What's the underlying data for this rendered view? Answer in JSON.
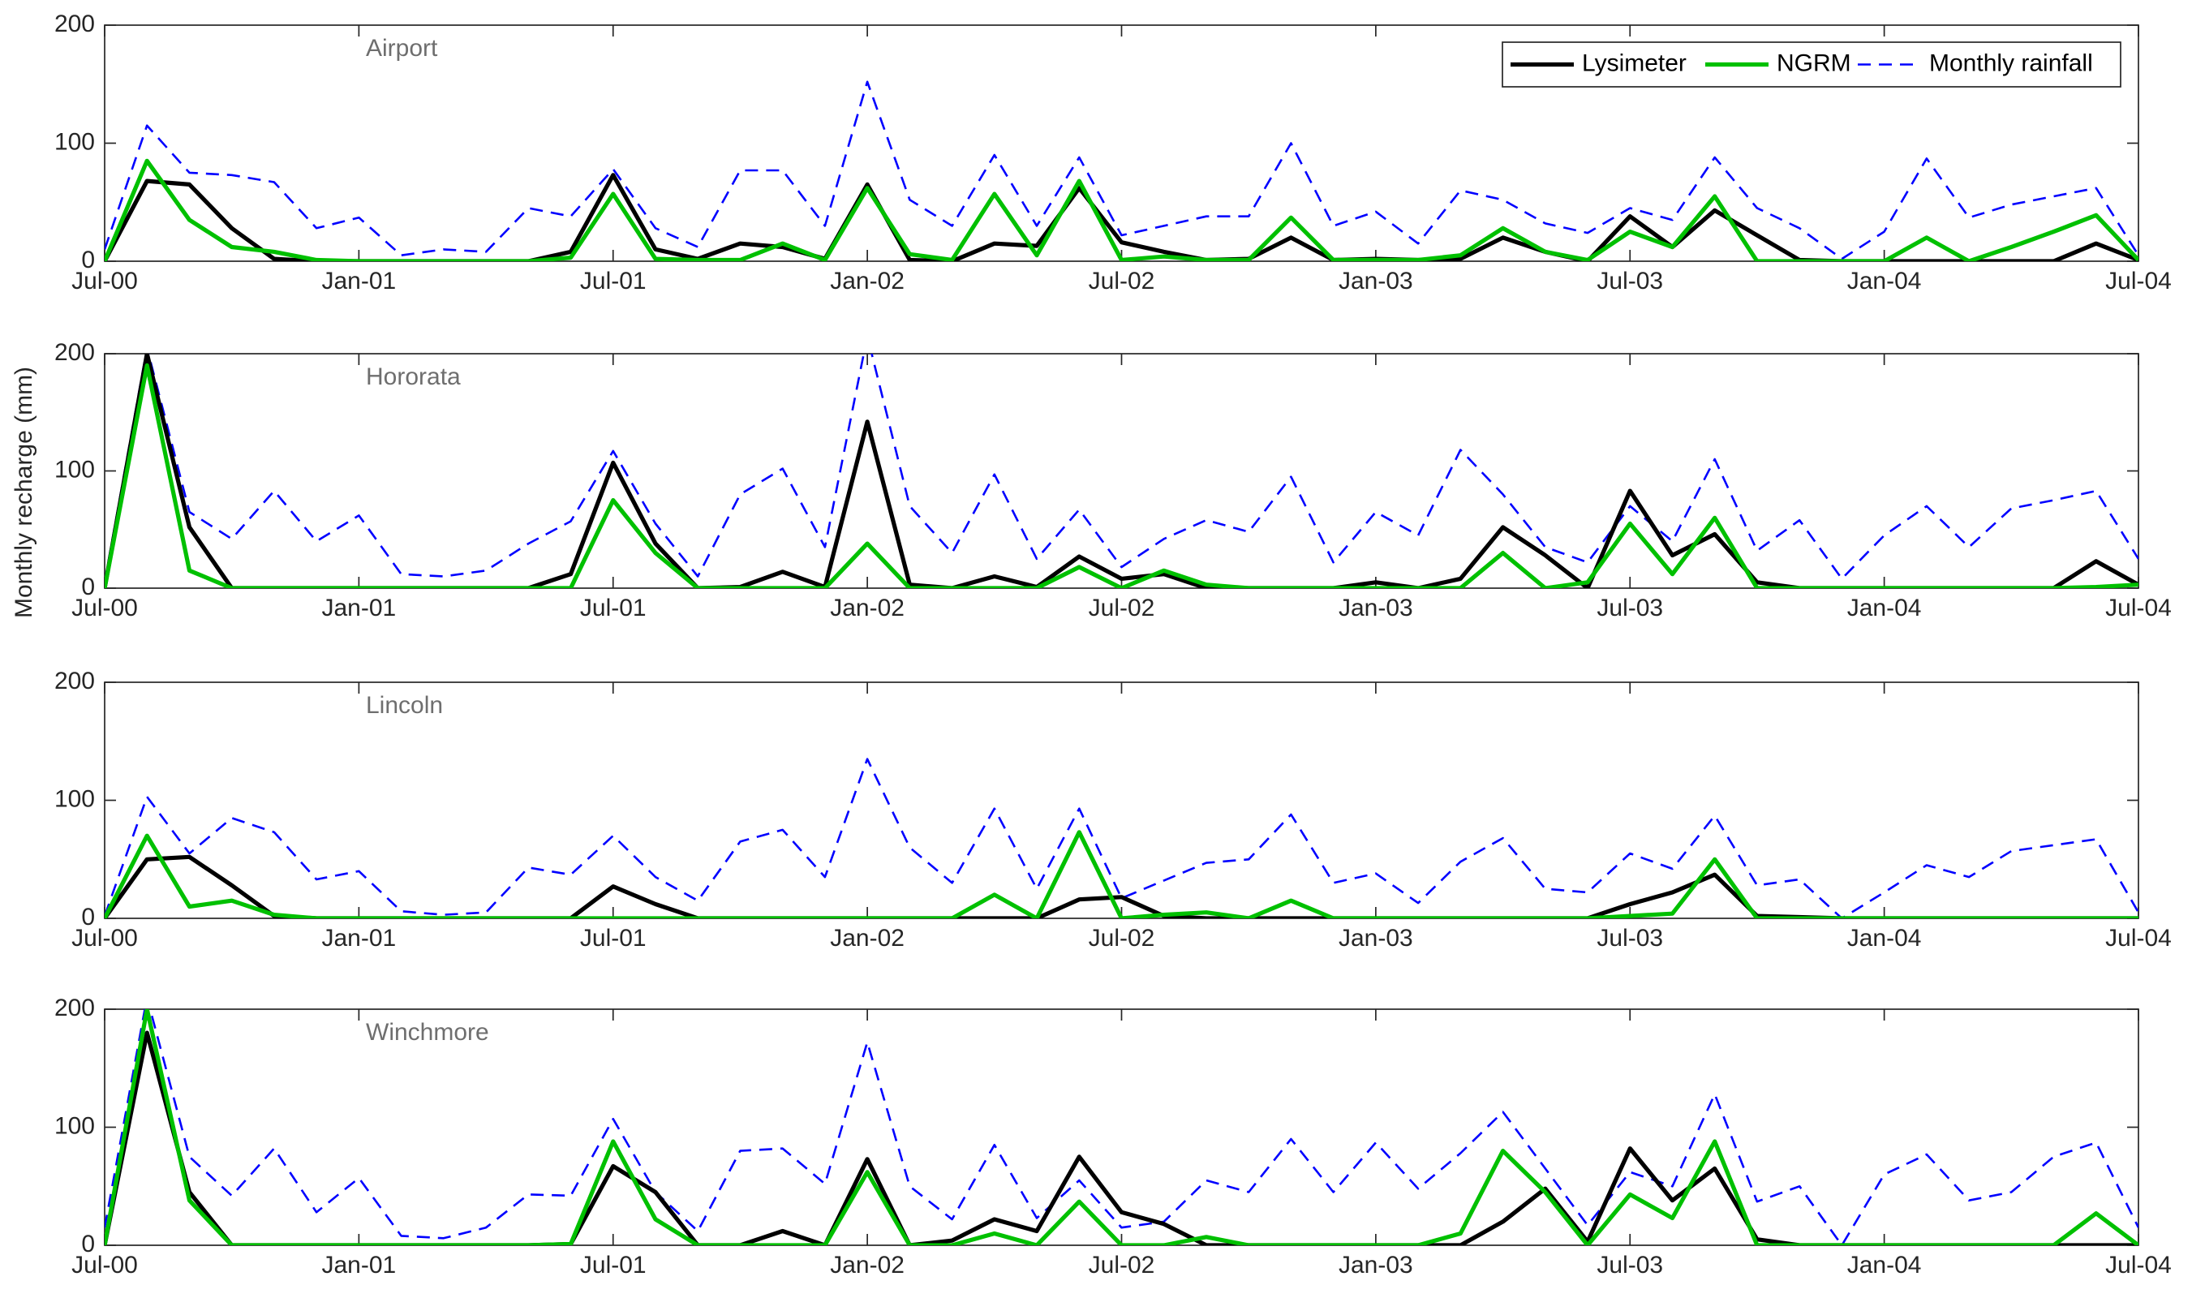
{
  "chart_data": [
    {
      "type": "line",
      "title": "Airport",
      "legend": "upper right",
      "categories": [
        "Jul-00",
        null,
        null,
        null,
        null,
        null,
        "Jan-01",
        null,
        null,
        null,
        null,
        null,
        "Jul-01",
        null,
        null,
        null,
        null,
        null,
        "Jan-02",
        null,
        null,
        null,
        null,
        null,
        "Jul-02",
        null,
        null,
        null,
        null,
        null,
        "Jan-03",
        null,
        null,
        null,
        null,
        null,
        "Jul-03",
        null,
        null,
        null,
        null,
        null,
        "Jan-04",
        null,
        null,
        null,
        null,
        null,
        "Jul-04"
      ],
      "ylim": [
        0,
        200
      ],
      "yticks": [
        0,
        100,
        200
      ],
      "series": [
        {
          "name": "Lysimeter",
          "color": "#000000",
          "linestyle": "solid",
          "values": [
            0,
            68,
            65,
            28,
            2,
            0,
            0,
            0,
            0,
            0,
            0,
            8,
            73,
            10,
            2,
            15,
            12,
            2,
            65,
            1,
            0,
            15,
            13,
            62,
            16,
            8,
            1,
            2,
            20,
            1,
            2,
            1,
            2,
            20,
            8,
            0,
            38,
            12,
            43,
            22,
            1,
            0,
            0,
            0,
            0,
            0,
            0,
            15,
            1
          ]
        },
        {
          "name": "NGRM",
          "color": "#00c000",
          "linestyle": "solid",
          "values": [
            0,
            85,
            35,
            12,
            8,
            1,
            0,
            0,
            0,
            0,
            0,
            3,
            57,
            2,
            1,
            1,
            15,
            1,
            62,
            6,
            1,
            57,
            5,
            68,
            1,
            4,
            1,
            1,
            37,
            1,
            1,
            1,
            5,
            28,
            8,
            1,
            25,
            12,
            55,
            0,
            0,
            0,
            0,
            20,
            0,
            12,
            25,
            39,
            1
          ]
        },
        {
          "name": "Monthly rainfall",
          "color": "#0000ff",
          "linestyle": "dashed",
          "values": [
            10,
            115,
            75,
            73,
            67,
            28,
            37,
            5,
            10,
            8,
            45,
            38,
            78,
            28,
            12,
            77,
            77,
            30,
            152,
            52,
            30,
            90,
            30,
            88,
            22,
            30,
            38,
            38,
            100,
            30,
            42,
            15,
            60,
            52,
            32,
            24,
            45,
            35,
            88,
            45,
            28,
            2,
            25,
            87,
            37,
            48,
            55,
            62,
            5
          ]
        }
      ]
    },
    {
      "type": "line",
      "title": "Hororata",
      "ylabel": "Monthly recharge (mm)",
      "categories": [
        "Jul-00",
        null,
        null,
        null,
        null,
        null,
        "Jan-01",
        null,
        null,
        null,
        null,
        null,
        "Jul-01",
        null,
        null,
        null,
        null,
        null,
        "Jan-02",
        null,
        null,
        null,
        null,
        null,
        "Jul-02",
        null,
        null,
        null,
        null,
        null,
        "Jan-03",
        null,
        null,
        null,
        null,
        null,
        "Jul-03",
        null,
        null,
        null,
        null,
        null,
        "Jan-04",
        null,
        null,
        null,
        null,
        null,
        "Jul-04"
      ],
      "ylim": [
        0,
        200
      ],
      "yticks": [
        0,
        100,
        200
      ],
      "series": [
        {
          "name": "Lysimeter",
          "color": "#000000",
          "linestyle": "solid",
          "values": [
            0,
            200,
            52,
            0,
            0,
            0,
            0,
            0,
            0,
            0,
            0,
            12,
            107,
            38,
            0,
            1,
            14,
            1,
            142,
            3,
            0,
            10,
            1,
            27,
            8,
            12,
            0,
            0,
            0,
            0,
            5,
            0,
            8,
            52,
            28,
            0,
            83,
            28,
            46,
            5,
            0,
            0,
            0,
            0,
            0,
            0,
            0,
            23,
            3
          ]
        },
        {
          "name": "NGRM",
          "color": "#00c000",
          "linestyle": "solid",
          "values": [
            0,
            190,
            15,
            0,
            0,
            0,
            0,
            0,
            0,
            0,
            0,
            0,
            75,
            30,
            0,
            0,
            0,
            0,
            38,
            0,
            0,
            0,
            0,
            18,
            0,
            15,
            3,
            0,
            0,
            0,
            0,
            0,
            0,
            30,
            0,
            5,
            55,
            12,
            60,
            0,
            0,
            0,
            0,
            0,
            0,
            0,
            0,
            1,
            3
          ]
        },
        {
          "name": "Monthly rainfall",
          "color": "#0000ff",
          "linestyle": "dashed",
          "values": [
            5,
            205,
            65,
            42,
            83,
            40,
            62,
            12,
            10,
            15,
            38,
            57,
            117,
            55,
            10,
            80,
            102,
            35,
            215,
            70,
            30,
            97,
            25,
            67,
            18,
            42,
            58,
            48,
            95,
            22,
            65,
            45,
            118,
            80,
            35,
            22,
            70,
            40,
            110,
            32,
            58,
            8,
            45,
            70,
            35,
            68,
            75,
            83,
            25
          ]
        }
      ]
    },
    {
      "type": "line",
      "title": "Lincoln",
      "categories": [
        "Jul-00",
        null,
        null,
        null,
        null,
        null,
        "Jan-01",
        null,
        null,
        null,
        null,
        null,
        "Jul-01",
        null,
        null,
        null,
        null,
        null,
        "Jan-02",
        null,
        null,
        null,
        null,
        null,
        "Jul-02",
        null,
        null,
        null,
        null,
        null,
        "Jan-03",
        null,
        null,
        null,
        null,
        null,
        "Jul-03",
        null,
        null,
        null,
        null,
        null,
        "Jan-04",
        null,
        null,
        null,
        null,
        null,
        "Jul-04"
      ],
      "ylim": [
        0,
        200
      ],
      "yticks": [
        0,
        100,
        200
      ],
      "series": [
        {
          "name": "Lysimeter",
          "color": "#000000",
          "linestyle": "solid",
          "values": [
            0,
            50,
            52,
            28,
            2,
            0,
            0,
            0,
            0,
            0,
            0,
            0,
            27,
            12,
            0,
            0,
            0,
            0,
            0,
            0,
            0,
            0,
            0,
            16,
            18,
            2,
            0,
            0,
            0,
            0,
            0,
            0,
            0,
            0,
            0,
            0,
            12,
            22,
            37,
            2,
            1,
            0,
            0,
            0,
            0,
            0,
            0,
            0,
            0
          ]
        },
        {
          "name": "NGRM",
          "color": "#00c000",
          "linestyle": "solid",
          "values": [
            0,
            70,
            10,
            15,
            3,
            0,
            0,
            0,
            0,
            0,
            0,
            0,
            0,
            0,
            0,
            0,
            0,
            0,
            0,
            0,
            0,
            20,
            0,
            73,
            0,
            3,
            5,
            0,
            15,
            0,
            0,
            0,
            0,
            0,
            0,
            0,
            2,
            4,
            50,
            0,
            0,
            0,
            0,
            0,
            0,
            0,
            0,
            0,
            0
          ]
        },
        {
          "name": "Monthly rainfall",
          "color": "#0000ff",
          "linestyle": "dashed",
          "values": [
            2,
            103,
            55,
            85,
            73,
            33,
            40,
            6,
            3,
            5,
            43,
            37,
            70,
            35,
            15,
            65,
            75,
            35,
            135,
            60,
            30,
            93,
            25,
            93,
            17,
            32,
            47,
            50,
            88,
            30,
            38,
            13,
            48,
            68,
            25,
            22,
            55,
            42,
            87,
            28,
            33,
            0,
            22,
            45,
            35,
            57,
            62,
            67,
            5
          ]
        }
      ]
    },
    {
      "type": "line",
      "title": "Winchmore",
      "categories": [
        "Jul-00",
        null,
        null,
        null,
        null,
        null,
        "Jan-01",
        null,
        null,
        null,
        null,
        null,
        "Jul-01",
        null,
        null,
        null,
        null,
        null,
        "Jan-02",
        null,
        null,
        null,
        null,
        null,
        "Jul-02",
        null,
        null,
        null,
        null,
        null,
        "Jan-03",
        null,
        null,
        null,
        null,
        null,
        "Jul-03",
        null,
        null,
        null,
        null,
        null,
        "Jan-04",
        null,
        null,
        null,
        null,
        null,
        "Jul-04"
      ],
      "ylim": [
        0,
        200
      ],
      "yticks": [
        0,
        100,
        200
      ],
      "series": [
        {
          "name": "Lysimeter",
          "color": "#000000",
          "linestyle": "solid",
          "values": [
            0,
            180,
            45,
            0,
            0,
            0,
            0,
            0,
            0,
            0,
            0,
            1,
            67,
            45,
            0,
            0,
            12,
            0,
            73,
            0,
            4,
            22,
            12,
            75,
            28,
            18,
            0,
            0,
            0,
            0,
            0,
            0,
            0,
            20,
            48,
            3,
            82,
            38,
            65,
            5,
            0,
            0,
            0,
            0,
            0,
            0,
            0,
            0,
            0
          ]
        },
        {
          "name": "NGRM",
          "color": "#00c000",
          "linestyle": "solid",
          "values": [
            0,
            200,
            38,
            0,
            0,
            0,
            0,
            0,
            0,
            0,
            0,
            1,
            88,
            22,
            0,
            0,
            0,
            0,
            62,
            0,
            0,
            10,
            0,
            37,
            0,
            0,
            7,
            0,
            0,
            0,
            0,
            0,
            10,
            80,
            45,
            0,
            43,
            23,
            88,
            0,
            0,
            0,
            0,
            0,
            0,
            0,
            0,
            27,
            0
          ]
        },
        {
          "name": "Monthly rainfall",
          "color": "#0000ff",
          "linestyle": "dashed",
          "values": [
            15,
            210,
            75,
            42,
            82,
            28,
            57,
            8,
            6,
            15,
            43,
            42,
            107,
            45,
            12,
            80,
            82,
            52,
            172,
            50,
            22,
            85,
            23,
            55,
            15,
            20,
            55,
            45,
            90,
            45,
            87,
            48,
            78,
            113,
            65,
            17,
            62,
            50,
            128,
            37,
            50,
            0,
            60,
            77,
            38,
            45,
            75,
            87,
            15
          ]
        }
      ]
    }
  ]
}
